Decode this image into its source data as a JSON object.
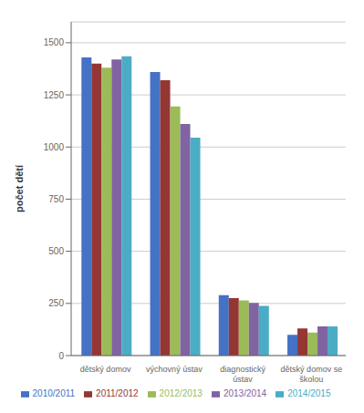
{
  "chart_data": {
    "type": "bar",
    "categories": [
      "dětský domov",
      "výchovný ústav",
      "diagnostický\nústav",
      "dětský domov se\nškolou"
    ],
    "series": [
      {
        "name": "2010/2011",
        "color": "#4472C4",
        "values": [
          1430,
          1360,
          290,
          100
        ]
      },
      {
        "name": "2011/2012",
        "color": "#943634",
        "values": [
          1400,
          1320,
          275,
          130
        ]
      },
      {
        "name": "2012/2013",
        "color": "#9BBB59",
        "values": [
          1380,
          1195,
          265,
          110
        ]
      },
      {
        "name": "2013/2014",
        "color": "#8064A2",
        "values": [
          1420,
          1110,
          252,
          140
        ]
      },
      {
        "name": "2014/2015",
        "color": "#4BACC6",
        "values": [
          1435,
          1045,
          238,
          140
        ]
      }
    ],
    "ylabel": "počet dětí",
    "ylim": [
      0,
      1600
    ],
    "yticks": [
      0,
      250,
      500,
      750,
      1000,
      1250,
      1500
    ],
    "grid": true,
    "legend": "bottom"
  }
}
